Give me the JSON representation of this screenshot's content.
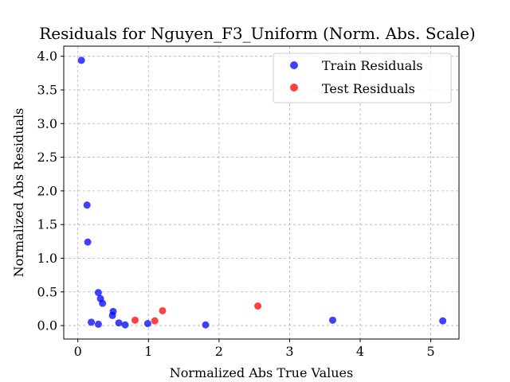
{
  "chart_data": {
    "type": "scatter",
    "title": "Residuals for Nguyen_F3_Uniform (Norm. Abs. Scale)",
    "xlabel": "Normalized Abs True Values",
    "ylabel": "Normalized Abs Residuals",
    "xlim": [
      -0.2,
      5.4
    ],
    "ylim": [
      -0.2,
      4.15
    ],
    "xticks": [
      0,
      1,
      2,
      3,
      4,
      5
    ],
    "xtick_labels": [
      "0",
      "1",
      "2",
      "3",
      "4",
      "5"
    ],
    "yticks": [
      0.0,
      0.5,
      1.0,
      1.5,
      2.0,
      2.5,
      3.0,
      3.5,
      4.0
    ],
    "ytick_labels": [
      "0.0",
      "0.5",
      "1.0",
      "1.5",
      "2.0",
      "2.5",
      "3.0",
      "3.5",
      "4.0"
    ],
    "grid": true,
    "legend_position": "top-right",
    "series": [
      {
        "name": "Train Residuals",
        "color": "#0000ff",
        "points": [
          [
            0.05,
            3.94
          ],
          [
            0.13,
            1.79
          ],
          [
            0.14,
            1.24
          ],
          [
            0.29,
            0.49
          ],
          [
            0.32,
            0.4
          ],
          [
            0.35,
            0.33
          ],
          [
            0.5,
            0.21
          ],
          [
            0.49,
            0.15
          ],
          [
            0.19,
            0.05
          ],
          [
            0.29,
            0.02
          ],
          [
            0.58,
            0.04
          ],
          [
            0.67,
            0.01
          ],
          [
            0.99,
            0.03
          ],
          [
            1.81,
            0.01
          ],
          [
            3.61,
            0.08
          ],
          [
            5.17,
            0.07
          ]
        ]
      },
      {
        "name": "Test Residuals",
        "color": "#ff0000",
        "points": [
          [
            0.81,
            0.08
          ],
          [
            1.09,
            0.07
          ],
          [
            1.2,
            0.22
          ],
          [
            2.55,
            0.29
          ]
        ]
      }
    ]
  }
}
